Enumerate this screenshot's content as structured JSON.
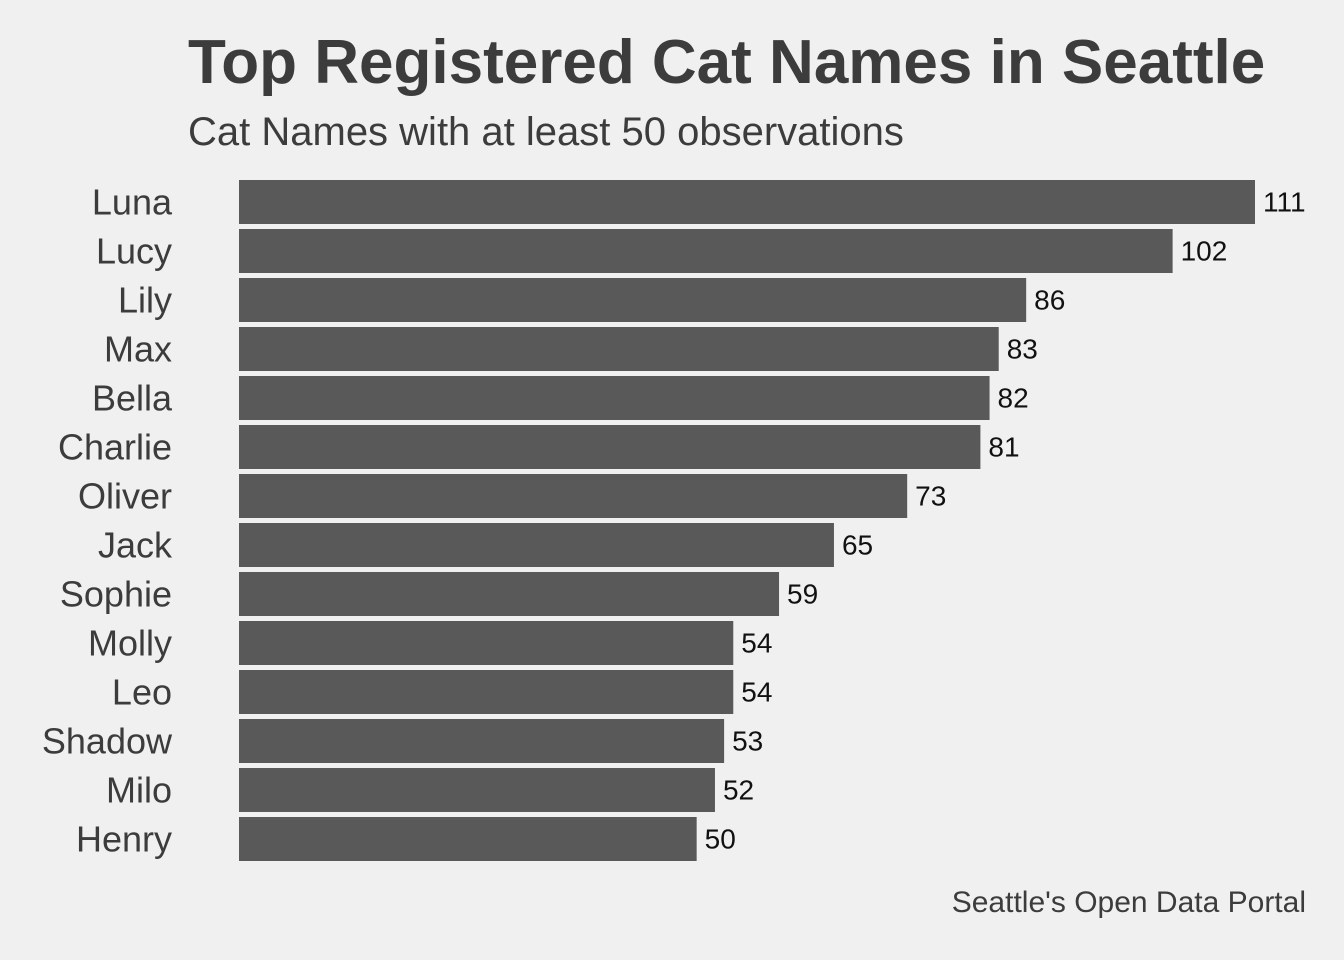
{
  "chart_data": {
    "type": "bar",
    "orientation": "horizontal",
    "title": "Top Registered Cat Names in Seattle",
    "subtitle": "Cat Names with at least 50 observations",
    "caption": "Seattle's Open Data Portal",
    "categories": [
      "Luna",
      "Lucy",
      "Lily",
      "Max",
      "Bella",
      "Charlie",
      "Oliver",
      "Jack",
      "Sophie",
      "Molly",
      "Leo",
      "Shadow",
      "Milo",
      "Henry"
    ],
    "values": [
      111,
      102,
      86,
      83,
      82,
      81,
      73,
      65,
      59,
      54,
      54,
      53,
      52,
      50
    ],
    "xlabel": "",
    "ylabel": "",
    "xlim": [
      0,
      111
    ],
    "grid": false,
    "legend": "none",
    "data_labels": true,
    "bar_color": "#595959",
    "text_color": "#3c3c3c",
    "background_color": "#f0f0f0"
  }
}
